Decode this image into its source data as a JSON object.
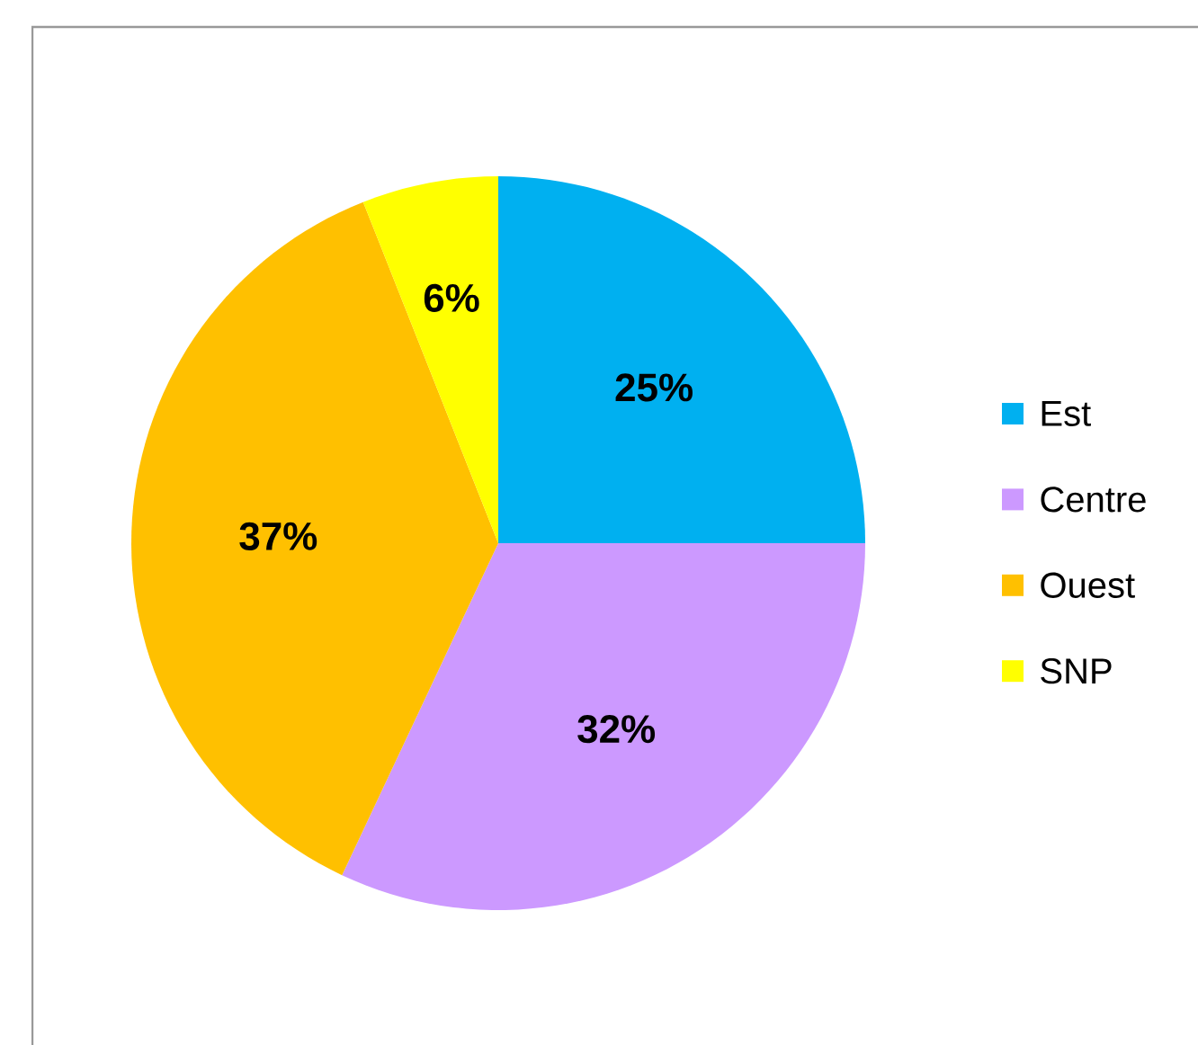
{
  "chart_data": {
    "type": "pie",
    "categories": [
      "Est",
      "Centre",
      "Ouest",
      "SNP"
    ],
    "values": [
      25,
      32,
      37,
      6
    ],
    "colors": [
      "#00b0f0",
      "#cc99ff",
      "#ffc000",
      "#ffff00"
    ],
    "value_labels": [
      "25%",
      "32%",
      "37%",
      "6%"
    ],
    "legend": "right"
  }
}
